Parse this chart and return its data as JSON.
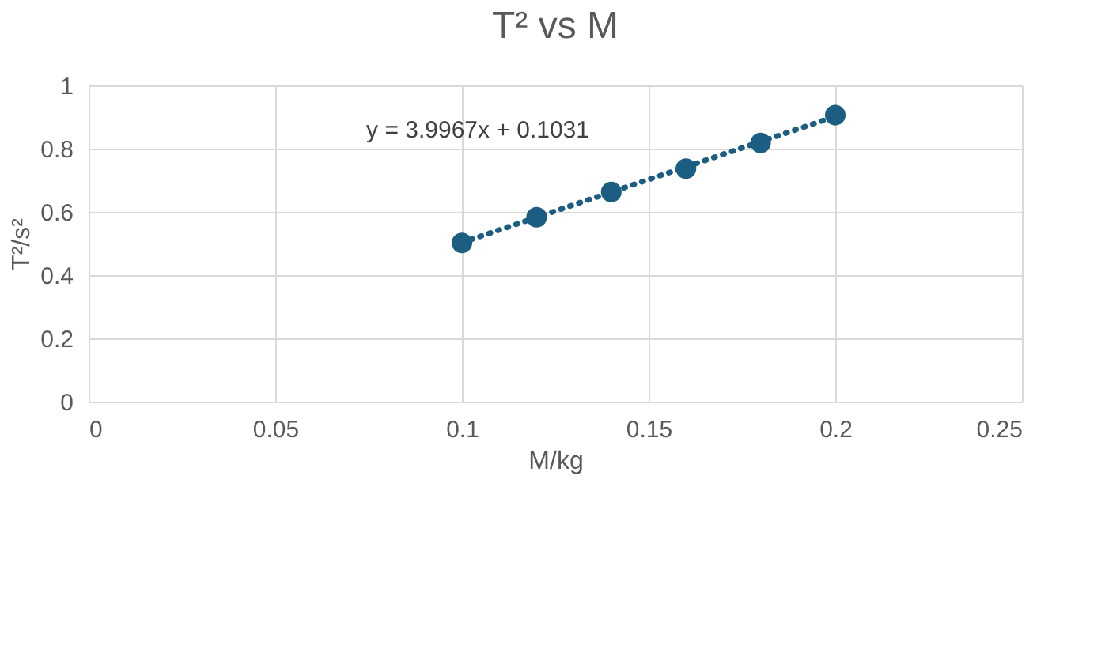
{
  "chart_data": {
    "type": "scatter",
    "title": "T² vs M",
    "xlabel": "M/kg",
    "ylabel": "T²/s²",
    "x": [
      0.1,
      0.12,
      0.14,
      0.16,
      0.18,
      0.2
    ],
    "series": [
      {
        "color": "#1b5e82",
        "values": [
          0.502,
          0.583,
          0.663,
          0.737,
          0.818,
          0.906
        ],
        "marker": "circle"
      },
      {
        "type": "line",
        "color": "#1b5e82",
        "x": [
          0.1,
          0.2
        ],
        "values": [
          0.503,
          0.902
        ],
        "line_style": "dotted",
        "marker": "none"
      }
    ],
    "annotations": [
      "y = 3.9967x + 0.1031"
    ],
    "xlim": [
      0,
      0.25
    ],
    "xticks": [
      0,
      0.05,
      0.1,
      0.15,
      0.2,
      0.25
    ],
    "ylim": [
      0,
      1
    ],
    "yticks": [
      0,
      0.2,
      0.4,
      0.6,
      0.8,
      1
    ],
    "grid": true
  }
}
